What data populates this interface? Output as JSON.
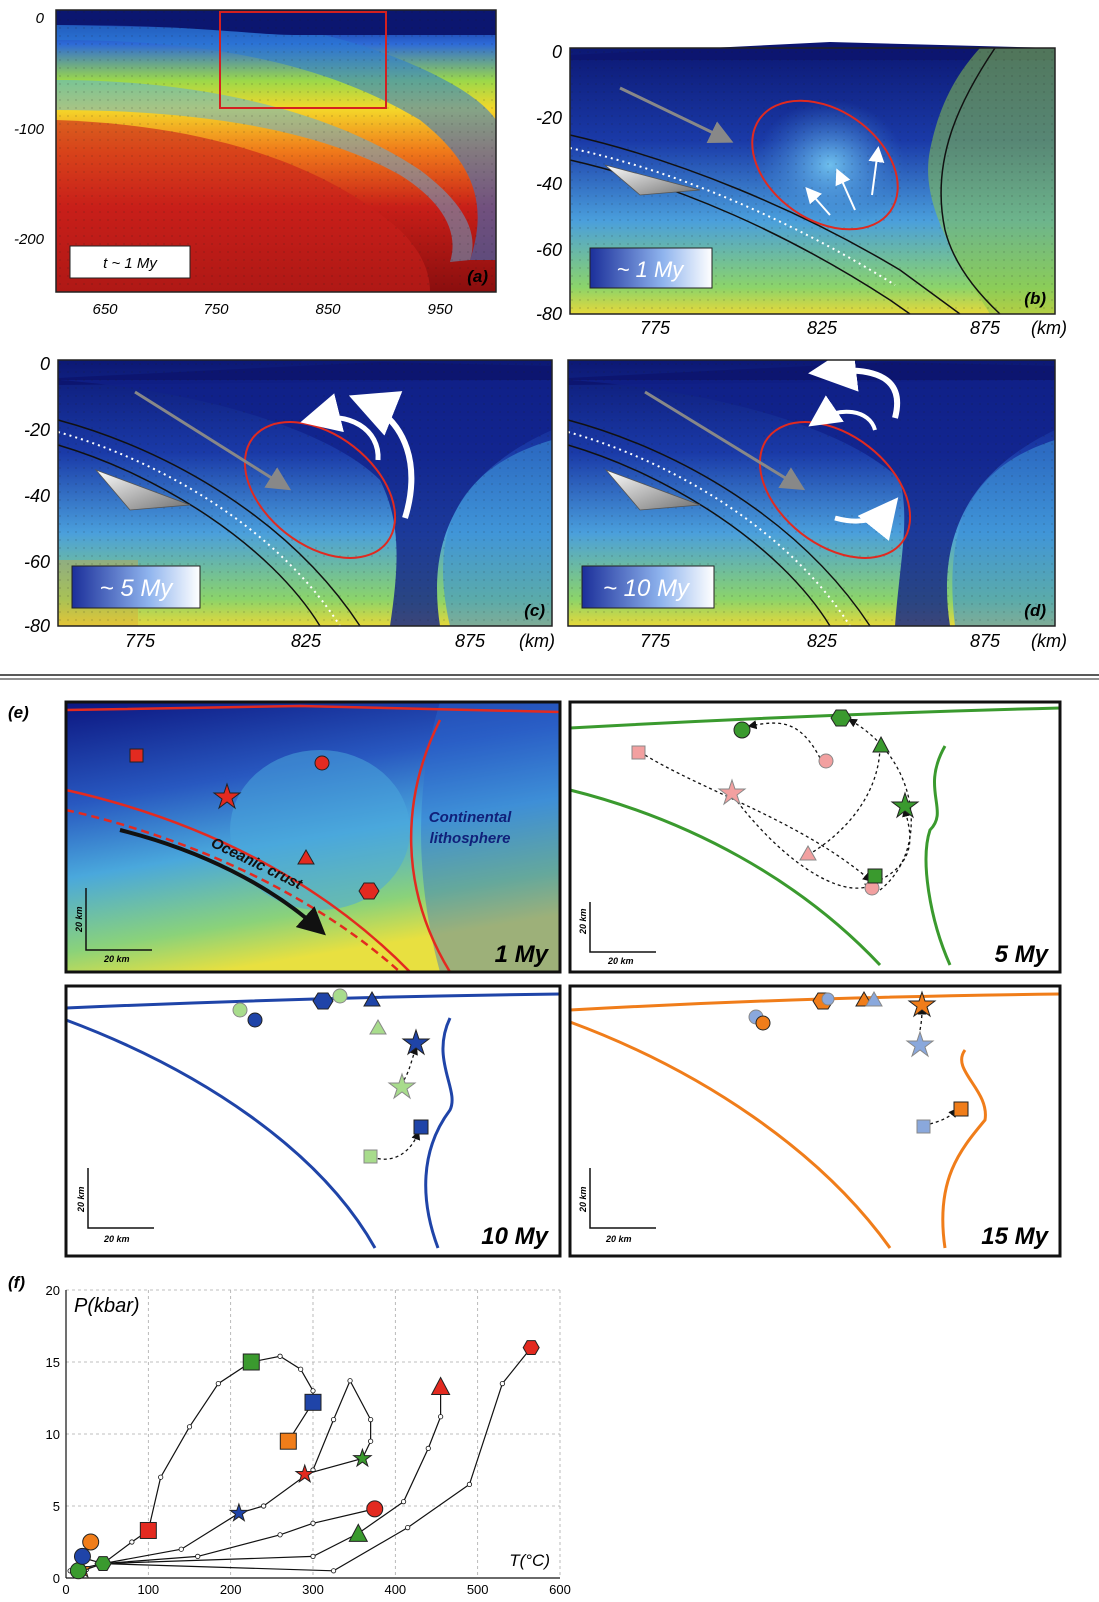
{
  "panel_a": {
    "letter": "(a)",
    "time_label": "t ~ 1 My",
    "y_ticks": [
      "0",
      "-100",
      "-200"
    ],
    "x_ticks": [
      "650",
      "750",
      "850",
      "950"
    ]
  },
  "panel_b": {
    "letter": "(b)",
    "time_label": "~ 1 My",
    "y_ticks": [
      "0",
      "-20",
      "-40",
      "-60",
      "-80"
    ],
    "x_ticks": [
      "775",
      "825",
      "875"
    ],
    "x_unit": "(km)"
  },
  "panel_c": {
    "letter": "(c)",
    "time_label": "~ 5 My",
    "y_ticks": [
      "0",
      "-20",
      "-40",
      "-60",
      "-80"
    ],
    "x_ticks": [
      "775",
      "825",
      "875"
    ],
    "x_unit": "(km)"
  },
  "panel_d": {
    "letter": "(d)",
    "time_label": "~ 10 My",
    "x_ticks": [
      "775",
      "825",
      "875"
    ],
    "x_unit": "(km)"
  },
  "panel_e": {
    "letter": "(e)",
    "continental_label_1": "Continental",
    "continental_label_2": "lithosphere",
    "oceanic_label": "Oceanic crust",
    "scale_v": "20 km",
    "scale_h": "20 km",
    "subpanels": [
      {
        "time": "1 My",
        "color": "#e32a20"
      },
      {
        "time": "5 My",
        "color": "#3a9a2e"
      },
      {
        "time": "10 My",
        "color": "#1f44a8"
      },
      {
        "time": "15 My",
        "color": "#f07d1a"
      }
    ]
  },
  "panel_f": {
    "letter": "(f)",
    "ylabel": "P(kbar)",
    "xlabel": "T(°C)"
  },
  "chart_data": {
    "type": "line",
    "title": "",
    "xlabel": "T(°C)",
    "ylabel": "P(kbar)",
    "xlim": [
      0,
      600
    ],
    "ylim": [
      0,
      20
    ],
    "x_ticks": [
      0,
      100,
      200,
      300,
      400,
      500,
      600
    ],
    "y_ticks": [
      0,
      5,
      10,
      15,
      20
    ],
    "grid": true,
    "series": [
      {
        "marker": "square",
        "points": [
          [
            5,
            0.5
          ],
          [
            45,
            1
          ],
          [
            80,
            2.5
          ],
          [
            100,
            3.3
          ],
          [
            115,
            7
          ],
          [
            150,
            10.5
          ],
          [
            185,
            13.5
          ],
          [
            225,
            15
          ],
          [
            260,
            15.4
          ],
          [
            285,
            14.5
          ],
          [
            300,
            13
          ],
          [
            300,
            12.2
          ],
          [
            270,
            9.5
          ]
        ],
        "markers_at": [
          [
            100,
            3.3
          ],
          [
            225,
            15
          ],
          [
            300,
            12.2
          ],
          [
            270,
            9.5
          ]
        ],
        "marker_colors": [
          "#e32a20",
          "#3a9a2e",
          "#1f44a8",
          "#f07d1a"
        ]
      },
      {
        "marker": "star",
        "points": [
          [
            25,
            0.6
          ],
          [
            45,
            1
          ],
          [
            140,
            2
          ],
          [
            210,
            4.5
          ],
          [
            240,
            5
          ],
          [
            300,
            7.5
          ],
          [
            325,
            11
          ],
          [
            345,
            13.7
          ],
          [
            370,
            11
          ],
          [
            370,
            9.5
          ],
          [
            360,
            8.3
          ],
          [
            290,
            7.2
          ]
        ],
        "markers_at": [
          [
            290,
            7.2
          ],
          [
            360,
            8.3
          ],
          [
            210,
            4.5
          ],
          [
            20,
            0.6
          ]
        ],
        "marker_colors": [
          "#e32a20",
          "#3a9a2e",
          "#1f44a8",
          "#f07d1a"
        ]
      },
      {
        "marker": "circle",
        "points": [
          [
            15,
            1.5
          ],
          [
            45,
            1
          ],
          [
            160,
            1.5
          ],
          [
            260,
            3
          ],
          [
            300,
            3.8
          ],
          [
            375,
            4.8
          ]
        ],
        "markers_at": [
          [
            375,
            4.8
          ],
          [
            15,
            0.5
          ],
          [
            20,
            1.5
          ],
          [
            30,
            2.5
          ]
        ],
        "marker_colors": [
          "#e32a20",
          "#3a9a2e",
          "#1f44a8",
          "#f07d1a"
        ]
      },
      {
        "marker": "triangle",
        "points": [
          [
            45,
            1
          ],
          [
            300,
            1.5
          ],
          [
            355,
            3.1
          ],
          [
            410,
            5.3
          ],
          [
            440,
            9
          ],
          [
            455,
            11.2
          ],
          [
            455,
            13.3
          ]
        ],
        "markers_at": [
          [
            455,
            13.3
          ],
          [
            355,
            3.1
          ]
        ],
        "marker_colors": [
          "#e32a20",
          "#3a9a2e"
        ]
      },
      {
        "marker": "hexagon",
        "points": [
          [
            45,
            1
          ],
          [
            325,
            0.5
          ],
          [
            415,
            3.5
          ],
          [
            490,
            6.5
          ],
          [
            530,
            13.5
          ],
          [
            565,
            16
          ]
        ],
        "markers_at": [
          [
            565,
            16
          ],
          [
            45,
            1
          ]
        ],
        "marker_colors": [
          "#e32a20",
          "#3a9a2e"
        ]
      }
    ]
  }
}
